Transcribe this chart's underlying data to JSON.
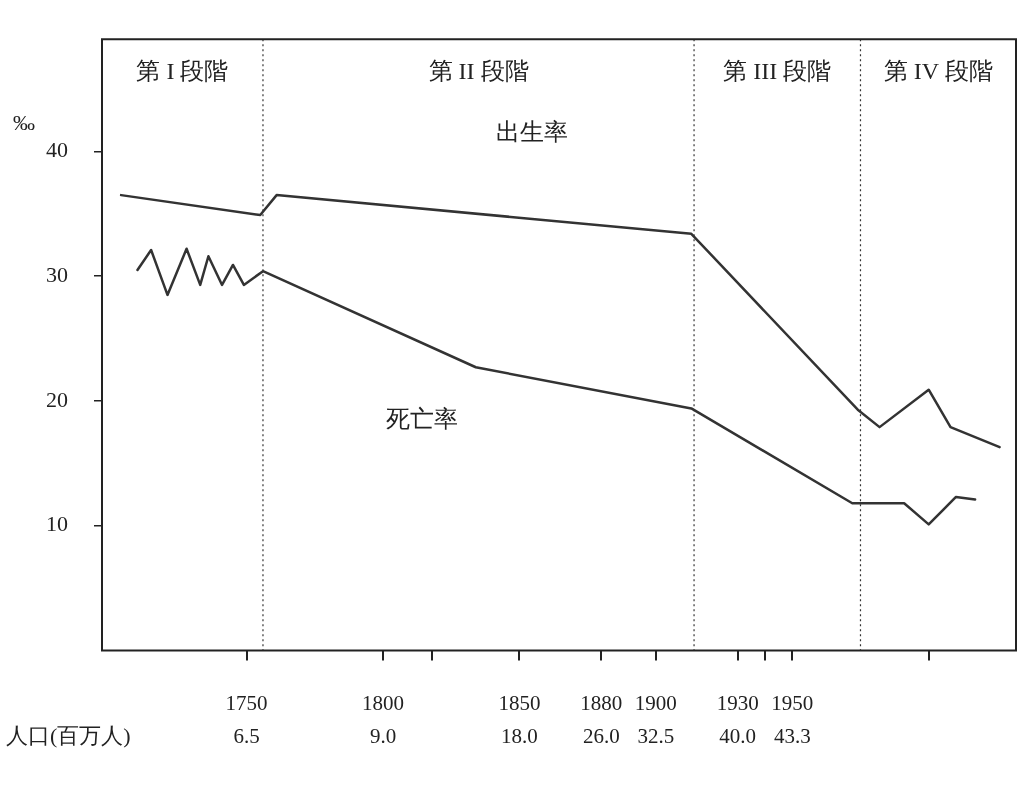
{
  "chart_data": {
    "type": "line",
    "ylabel": "‰",
    "xlabel": "人口(百万人)",
    "xlim": [
      1697,
      2032
    ],
    "ylim": [
      0,
      49
    ],
    "xticks": [
      1750,
      1800,
      {
        "value": 1818,
        "label": null
      },
      1850,
      1880,
      1900,
      1930,
      {
        "value": 1940,
        "label": null
      },
      1950,
      {
        "value": 2000,
        "label": null
      }
    ],
    "yticks": [
      10,
      20,
      30,
      40
    ],
    "grid": false,
    "legend": false,
    "marker": "none",
    "line_style": "solid",
    "series": [
      {
        "color": "#333333",
        "x": [
          1704,
          1755,
          1761,
          1913,
          1974,
          1982,
          2000,
          2008,
          2026
        ],
        "values": [
          36.5,
          34.9,
          36.5,
          33.4,
          19.3,
          17.9,
          20.9,
          17.9,
          16.3
        ]
      },
      {
        "color": "#333333",
        "x": [
          1710,
          1715,
          1721,
          1728,
          1733,
          1736,
          1741,
          1745,
          1749,
          1756,
          1834,
          1913,
          1972,
          1991,
          2000,
          2010,
          2017
        ],
        "values": [
          30.5,
          32.1,
          28.5,
          32.2,
          29.3,
          31.6,
          29.3,
          30.9,
          29.3,
          30.4,
          22.7,
          19.4,
          11.8,
          11.8,
          10.1,
          12.3,
          12.1
        ]
      }
    ],
    "ref_lines": [
      {
        "axis": "x",
        "value": 1756,
        "line_style": "dotted"
      },
      {
        "axis": "x",
        "value": 1914,
        "line_style": "dotted"
      },
      {
        "axis": "x",
        "value": 1975,
        "line_style": "dotted"
      }
    ],
    "annotations": [
      "第 I 段階",
      "第 II 段階",
      "第 III 段階",
      "第 IV 段階",
      "出生率",
      "死亡率",
      "6.5",
      "9.0",
      "18.0",
      "26.0",
      "32.5",
      "40.0",
      "43.3"
    ]
  }
}
